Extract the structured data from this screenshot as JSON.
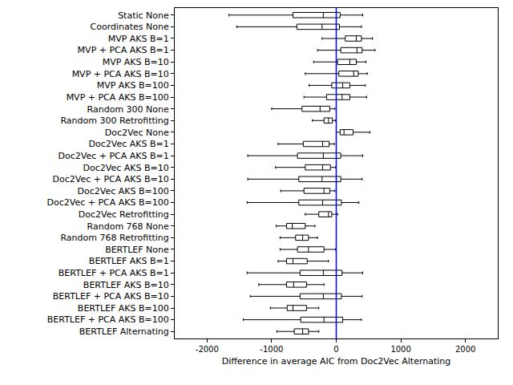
{
  "chart_data": {
    "type": "box",
    "orientation": "horizontal",
    "x_label": "Difference in average AIC from Doc2Vec Alternating",
    "categories": [
      "Static None",
      "Coordinates None",
      "MVP AKS B=1",
      "MVP + PCA AKS B=1",
      "MVP AKS B=10",
      "MVP + PCA AKS B=10",
      "MVP AKS B=100",
      "MVP + PCA AKS B=100",
      "Random 300 None",
      "Random 300 Retrofitting",
      "Doc2Vec None",
      "Doc2Vec AKS B=1",
      "Doc2Vec + PCA AKS B=1",
      "Doc2Vec AKS B=10",
      "Doc2Vec + PCA AKS B=10",
      "Doc2Vec AKS B=100",
      "Doc2Vec + PCA AKS B=100",
      "Doc2Vec Retrofitting",
      "Random 768 None",
      "Random 768 Retrofitting",
      "BERTLEF None",
      "BERTLEF AKS B=1",
      "BERTLEF + PCA AKS B=1",
      "BERTLEF AKS B=10",
      "BERTLEF + PCA AKS B=10",
      "BERTLEF AKS B=100",
      "BERTLEF + PCA AKS B=100",
      "BERTLEF Alternating"
    ],
    "lower_whisker": [
      -1660,
      -1540,
      -220,
      -290,
      -350,
      -480,
      -420,
      -500,
      -1000,
      -370,
      0,
      -900,
      -1370,
      -940,
      -1370,
      -860,
      -1380,
      -480,
      -930,
      -870,
      -870,
      -900,
      -1380,
      -1200,
      -1330,
      -1020,
      -1440,
      -920
    ],
    "q1": [
      -670,
      -610,
      140,
      70,
      20,
      40,
      -70,
      -150,
      -530,
      -190,
      60,
      -510,
      -600,
      -480,
      -580,
      -500,
      -580,
      -270,
      -770,
      -630,
      -600,
      -770,
      -560,
      -770,
      -560,
      -760,
      -550,
      -650
    ],
    "median": [
      -200,
      -220,
      310,
      320,
      210,
      270,
      100,
      90,
      -250,
      -120,
      120,
      -210,
      -200,
      -210,
      -220,
      -190,
      -210,
      -120,
      -680,
      -520,
      -430,
      -670,
      -200,
      -660,
      -200,
      -670,
      -190,
      -520
    ],
    "q3": [
      60,
      50,
      390,
      400,
      310,
      340,
      210,
      210,
      -100,
      -60,
      260,
      -110,
      70,
      -90,
      70,
      -100,
      80,
      -70,
      -480,
      -430,
      -190,
      -450,
      90,
      -460,
      80,
      -460,
      100,
      -430
    ],
    "upper_whisker": [
      410,
      390,
      560,
      600,
      460,
      480,
      450,
      470,
      -20,
      -10,
      520,
      -30,
      410,
      -10,
      400,
      -20,
      350,
      20,
      -330,
      -290,
      -10,
      -120,
      410,
      -190,
      400,
      -270,
      390,
      -270
    ],
    "color": "#000000",
    "reference_line": {
      "x": 0,
      "color": "#0000ff"
    },
    "xlim": [
      -2500,
      2500
    ],
    "xticks": [
      -2000,
      -1000,
      0,
      1000,
      2000
    ],
    "grid": false
  }
}
